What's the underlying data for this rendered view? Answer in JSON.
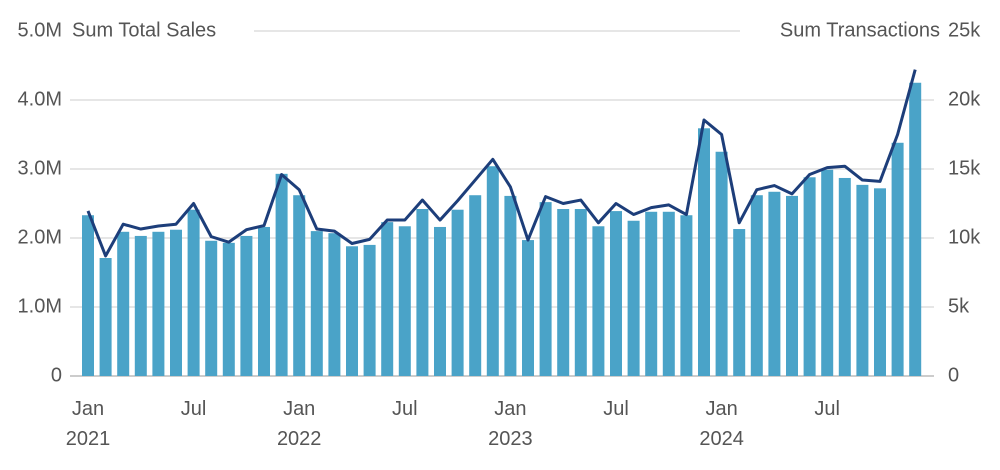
{
  "chart_data": {
    "type": "bar_line",
    "y_title": "Sum Total Sales",
    "y2_title": "Sum Transactions",
    "categories": [
      "Jan\n2021",
      null,
      null,
      null,
      null,
      null,
      "Jul",
      null,
      null,
      null,
      null,
      null,
      "Jan\n2022",
      null,
      null,
      null,
      null,
      null,
      "Jul",
      null,
      null,
      null,
      null,
      null,
      "Jan\n2023",
      null,
      null,
      null,
      null,
      null,
      "Jul",
      null,
      null,
      null,
      null,
      null,
      "Jan\n2024",
      null,
      null,
      null,
      null,
      null,
      "Jul",
      null,
      null,
      null,
      null,
      null
    ],
    "series": [
      {
        "name": "Sum Total Sales",
        "type": "bar",
        "color": "#4aa3c8",
        "values": [
          2330000,
          1710000,
          2090000,
          2030000,
          2090000,
          2120000,
          2410000,
          1960000,
          1930000,
          2030000,
          2160000,
          2930000,
          2620000,
          2100000,
          2070000,
          1880000,
          1900000,
          2230000,
          2170000,
          2420000,
          2160000,
          2410000,
          2620000,
          3040000,
          2610000,
          1970000,
          2520000,
          2420000,
          2420000,
          2170000,
          2390000,
          2250000,
          2380000,
          2380000,
          2330000,
          3590000,
          3250000,
          2130000,
          2620000,
          2670000,
          2610000,
          2880000,
          2990000,
          2870000,
          2770000,
          2720000,
          3380000,
          4250000
        ]
      },
      {
        "name": "Sum Transactions",
        "type": "line",
        "axis": "y2",
        "color": "#1d3e7a",
        "values": [
          11960,
          8700,
          11000,
          10650,
          10870,
          11000,
          12500,
          10100,
          9700,
          10600,
          10900,
          14600,
          13500,
          10650,
          10500,
          9600,
          9900,
          11300,
          11300,
          12750,
          11300,
          12700,
          14200,
          15700,
          13700,
          9850,
          13000,
          12500,
          12750,
          11100,
          12500,
          11700,
          12200,
          12400,
          11700,
          18550,
          17500,
          11100,
          13500,
          13800,
          13200,
          14600,
          15100,
          15200,
          14200,
          14100,
          17500,
          22200
        ]
      }
    ],
    "ylim": [
      0,
      5000000
    ],
    "yticks": [
      0,
      {
        "value": 1000000,
        "label": "1.0M"
      },
      {
        "value": 2000000,
        "label": "2.0M"
      },
      {
        "value": 3000000,
        "label": "3.0M"
      },
      {
        "value": 4000000,
        "label": "4.0M"
      },
      {
        "value": 5000000,
        "label": "5.0M"
      }
    ],
    "y2lim": [
      0,
      25000
    ],
    "y2ticks": [
      0,
      {
        "value": 5000,
        "label": "5k"
      },
      {
        "value": 10000,
        "label": "10k"
      },
      {
        "value": 15000,
        "label": "15k"
      },
      {
        "value": 20000,
        "label": "20k"
      },
      {
        "value": 25000,
        "label": "25k"
      }
    ],
    "grid": true
  }
}
